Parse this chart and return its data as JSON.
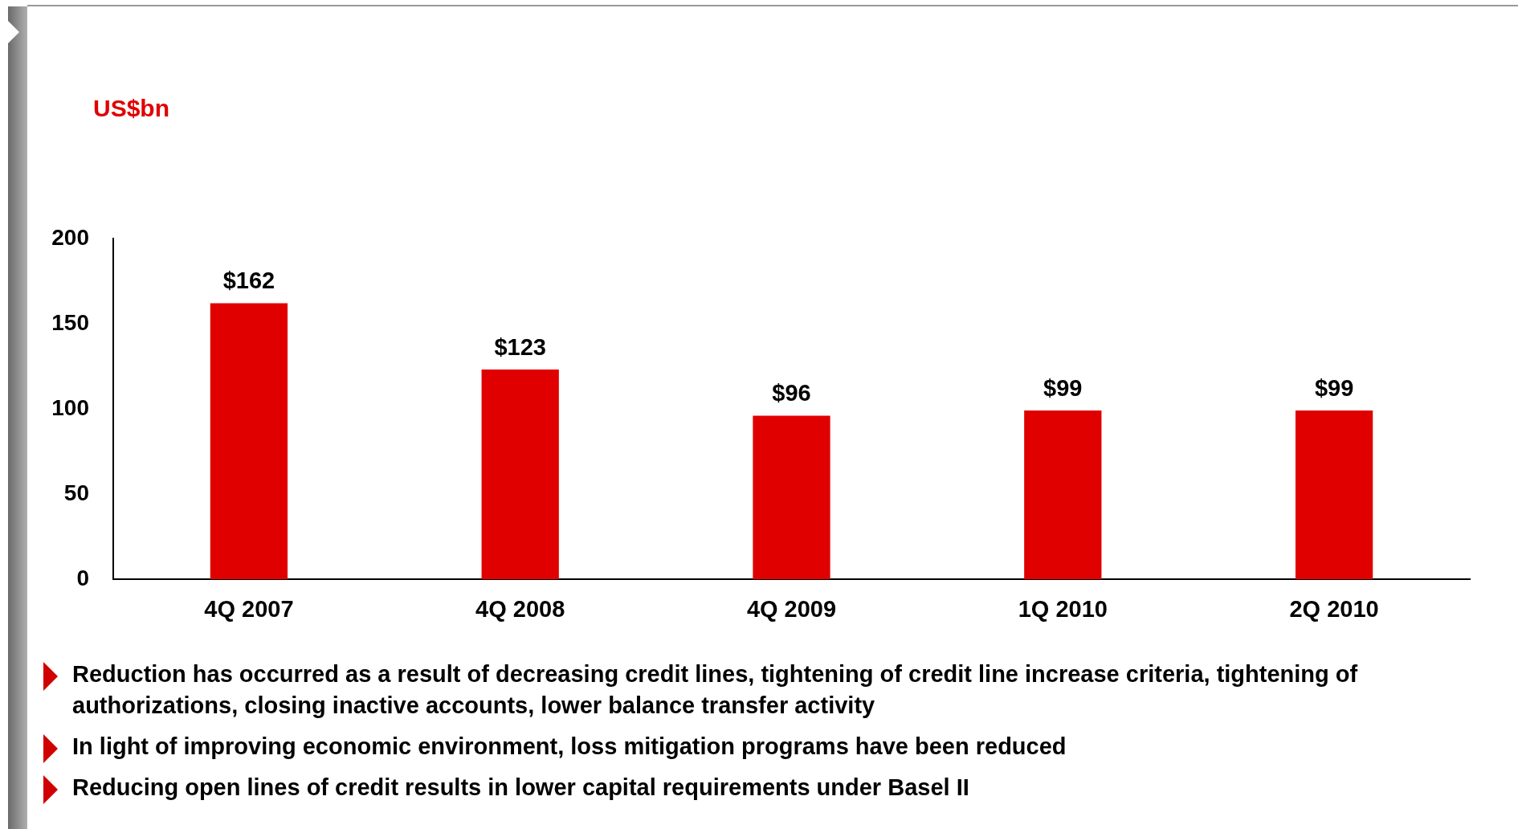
{
  "chart_data": {
    "type": "bar",
    "ylabel": "US$bn",
    "categories": [
      "4Q 2007",
      "4Q 2008",
      "4Q 2009",
      "1Q 2010",
      "2Q 2010"
    ],
    "values": [
      162,
      123,
      96,
      99,
      99
    ],
    "value_labels": [
      "$162",
      "$123",
      "$96",
      "$99",
      "$99"
    ],
    "color": "#e00000",
    "ylim": [
      0,
      200
    ],
    "yticks": [
      0,
      50,
      100,
      150,
      200
    ],
    "grid": false,
    "annotations": [
      "Reduction has occurred as a result of decreasing credit lines, tightening of credit line increase criteria, tightening of authorizations, closing inactive accounts, lower balance transfer activity",
      "In light of improving economic environment, loss mitigation programs have been reduced",
      "Reducing open lines of credit results in lower capital requirements under Basel II"
    ]
  }
}
